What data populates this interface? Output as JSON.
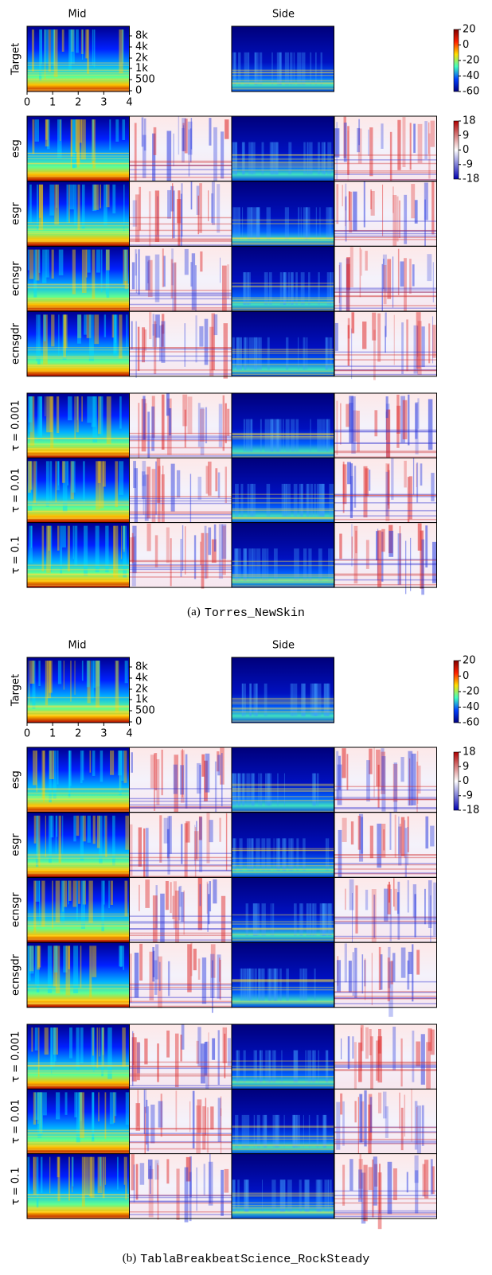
{
  "panels": [
    {
      "caption": {
        "label": "(a)",
        "name": "Torres_NewSkin"
      },
      "columns": [
        "Mid",
        "Side"
      ],
      "target_label": "Target",
      "y_ticks": [
        "8k",
        "4k",
        "2k",
        "1k",
        "500",
        "0"
      ],
      "x_ticks": [
        0,
        1,
        2,
        3,
        4
      ],
      "colorbar_ticks": [
        20,
        0,
        -20,
        -40,
        -60
      ],
      "diff_colorbar_ticks": [
        18,
        9,
        0,
        -9,
        -18
      ],
      "rows": [
        "esg",
        "esgr",
        "ecnsgr",
        "ecnsgdr"
      ],
      "tau_rows": [
        "τ = 0.001",
        "τ = 0.01",
        "τ = 0.1"
      ]
    },
    {
      "caption": {
        "label": "(b)",
        "name": "TablaBreakbeatScience_RockSteady"
      },
      "columns": [
        "Mid",
        "Side"
      ],
      "target_label": "Target",
      "y_ticks": [
        "8k",
        "4k",
        "2k",
        "1k",
        "500",
        "0"
      ],
      "x_ticks": [
        0,
        1,
        2,
        3,
        4
      ],
      "colorbar_ticks": [
        20,
        0,
        -20,
        -40,
        -60
      ],
      "diff_colorbar_ticks": [
        18,
        9,
        0,
        -9,
        -18
      ],
      "rows": [
        "esg",
        "esgr",
        "ecnsgr",
        "ecnsgdr"
      ],
      "tau_rows": [
        "τ = 0.001",
        "τ = 0.01",
        "τ = 0.1"
      ]
    }
  ]
}
